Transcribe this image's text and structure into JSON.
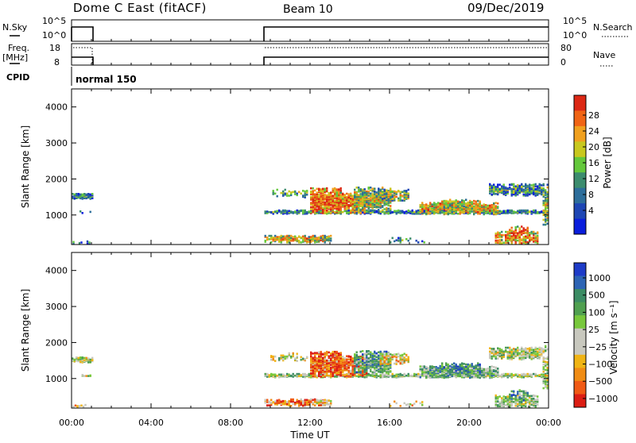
{
  "header": {
    "station": "Dome C East (fitACF)",
    "beam": "Beam 10",
    "date": "09/Dec/2019"
  },
  "top_panels": {
    "nsky_label": "N.Sky",
    "nsky_ticks": [
      "10^5",
      "10^0"
    ],
    "nsearch_label": "N.Search",
    "nsearch_ticks": [
      "10^5",
      "10^0"
    ],
    "freq_label_1": "Freq.",
    "freq_label_2": "[MHz]",
    "freq_ticks": [
      "18",
      "8"
    ],
    "nave_label": "Nave",
    "nave_ticks": [
      "80",
      "0"
    ],
    "cpid_label": "CPID",
    "cpid_value": "normal 150"
  },
  "colors": {
    "power_scale": [
      "#0a1edc",
      "#1e46b4",
      "#2d6e9b",
      "#3c8c6e",
      "#64c83c",
      "#c8c81e",
      "#f0a01e",
      "#f06414",
      "#dc2814"
    ],
    "velocity_scale": [
      "#1e3cc8",
      "#2d64b4",
      "#3c8c64",
      "#50a050",
      "#78c83c",
      "#c8c8be",
      "#c8c8be",
      "#f0b414",
      "#f08c14",
      "#f05a14",
      "#dc1e14"
    ]
  },
  "chart_data": [
    {
      "type": "line",
      "title": "Dome C East (fitACF)",
      "panel": "N.Sky / N.Search",
      "x": [
        "00:00",
        "01:00",
        "09:40",
        "24:00"
      ],
      "series": [
        {
          "name": "N.Sky",
          "values": [
            1,
            1,
            1,
            1
          ]
        },
        {
          "name": "N.Search",
          "values": [
            1,
            1,
            1,
            1
          ]
        }
      ],
      "operating_intervals": [
        [
          "00:00",
          "01:00"
        ],
        [
          "09:40",
          "24:00"
        ]
      ]
    },
    {
      "type": "line",
      "panel": "Freq. / Nave",
      "series": [
        {
          "name": "Freq.",
          "values": [
            10,
            10
          ],
          "units": "MHz"
        },
        {
          "name": "Nave",
          "values": [
            70,
            70
          ]
        }
      ],
      "ylim_freq": [
        8,
        18
      ],
      "ylim_nave": [
        0,
        80
      ]
    },
    {
      "type": "heatmap",
      "panel": "power",
      "ylabel": "Slant Range [km]",
      "xlabel": "Time UT",
      "colorbar_label": "Power [dB]",
      "ylim": [
        180,
        4500
      ],
      "y_ticks": [
        1000,
        2000,
        3000,
        4000
      ],
      "x_ticks": [
        "00:00",
        "04:00",
        "08:00",
        "12:00",
        "16:00",
        "20:00",
        "00:00"
      ],
      "colorbar_ticks": [
        "28",
        "24",
        "20",
        "16",
        "12",
        "8",
        "4"
      ],
      "clim": [
        0,
        30
      ]
    },
    {
      "type": "heatmap",
      "panel": "velocity",
      "ylabel": "Slant Range [km]",
      "xlabel": "Time UT",
      "colorbar_label": "Velocity [m s⁻¹]",
      "ylim": [
        180,
        4500
      ],
      "y_ticks": [
        1000,
        2000,
        3000,
        4000
      ],
      "x_ticks": [
        "00:00",
        "04:00",
        "08:00",
        "12:00",
        "16:00",
        "20:00",
        "00:00"
      ],
      "colorbar_ticks": [
        "1000",
        "500",
        "100",
        "25",
        "−25",
        "−100",
        "−500",
        "−1000"
      ]
    }
  ],
  "axis": {
    "x_title": "Time UT",
    "x_ticks": [
      "00:00",
      "04:00",
      "08:00",
      "12:00",
      "16:00",
      "20:00",
      "00:00"
    ],
    "y_title": "Slant Range [km]",
    "y_ticks": [
      "1000",
      "2000",
      "3000",
      "4000"
    ]
  },
  "colorbars": {
    "power_label": "Power [dB]",
    "power_ticks": [
      "28",
      "24",
      "20",
      "16",
      "12",
      "8",
      "4"
    ],
    "velocity_label": "Velocity [m s⁻¹]",
    "velocity_ticks": [
      "1000",
      "500",
      "100",
      "25",
      "−25",
      "−100",
      "−500",
      "−1000"
    ]
  }
}
